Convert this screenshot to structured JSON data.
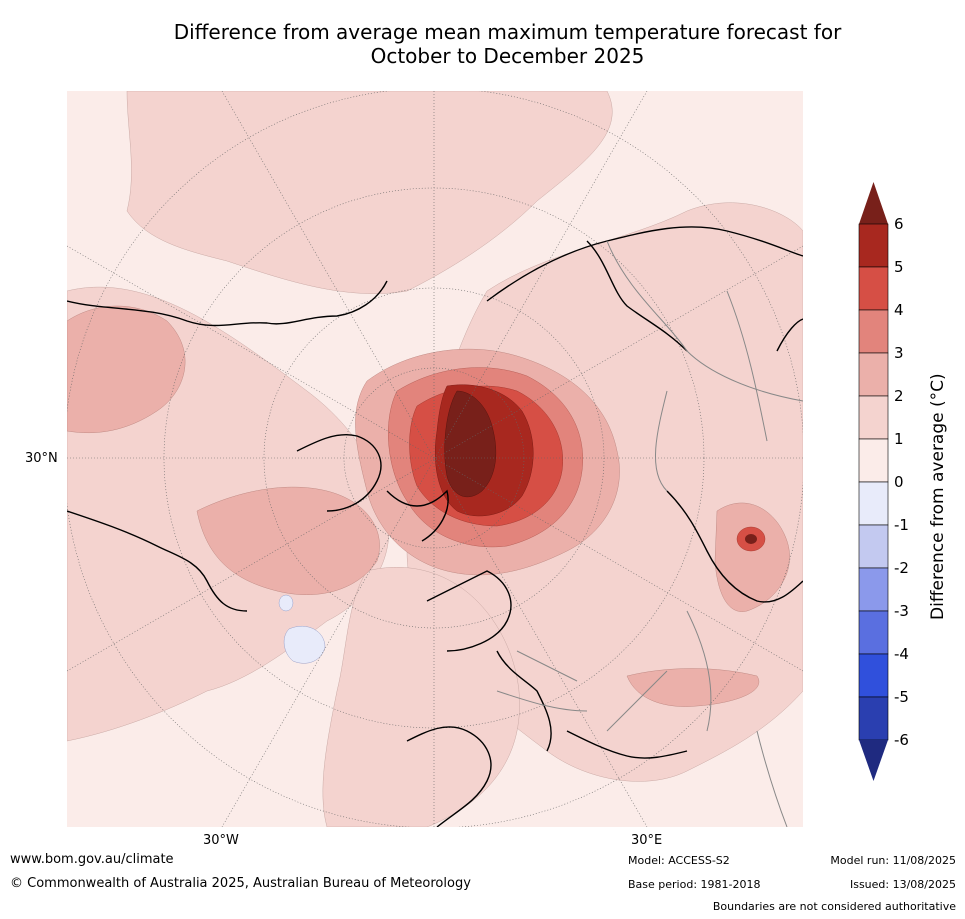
{
  "title_line1": "Difference from average mean maximum temperature forecast for",
  "title_line2": "October to December 2025",
  "map": {
    "latitude_label": "30°N",
    "longitude_labels": [
      "30°W",
      "30°E"
    ],
    "anomaly_colors": {
      "0-1": "#fbece9",
      "1-2": "#f4d3cf",
      "2-3": "#ebb0aa",
      "3-4": "#e2847c",
      "4-5": "#d64f45",
      "5-6": "#a8281f",
      "above-6": "#78201a",
      "-1-0": "#e8ebfa",
      "-2--1": "#c3c9f0",
      "-3--2": "#8b99eb",
      "-4--3": "#5a6fe0",
      "-5--4": "#3050dc",
      "-6--5": "#2a3fb0",
      "below--6": "#1f2a80"
    }
  },
  "colorbar": {
    "label": "Difference from average (°C)",
    "ticks": [
      "6",
      "5",
      "4",
      "3",
      "2",
      "1",
      "0",
      "-1",
      "-2",
      "-3",
      "-4",
      "-5",
      "-6"
    ],
    "colors": [
      "#78201a",
      "#a8281f",
      "#d64f45",
      "#e2847c",
      "#ebb0aa",
      "#f4d3cf",
      "#fbece9",
      "#e8ebfa",
      "#c3c9f0",
      "#8b99eb",
      "#5a6fe0",
      "#3050dc",
      "#2a3fb0",
      "#1f2a80"
    ]
  },
  "footer": {
    "website": "www.bom.gov.au/climate",
    "copyright": "© Commonwealth of Australia 2025, Australian Bureau of Meteorology",
    "model": "Model: ACCESS-S2",
    "base_period": "Base period: 1981-2018",
    "model_run": "Model run: 11/08/2025",
    "issued": "Issued: 13/08/2025",
    "disclaimer": "Boundaries are not considered authoritative"
  }
}
